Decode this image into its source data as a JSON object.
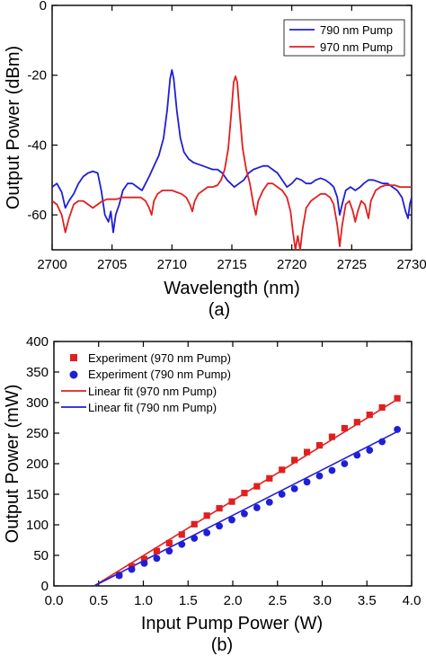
{
  "chart_data": [
    {
      "type": "line",
      "panel_label": "(a)",
      "xlabel": "Wavelength (nm)",
      "ylabel": "Output Power (dBm)",
      "xlim": [
        2700,
        2730
      ],
      "ylim": [
        -70,
        0
      ],
      "xticks": [
        "2700",
        "2705",
        "2710",
        "2715",
        "2720",
        "2725",
        "2730"
      ],
      "yticks": [
        "0",
        "-20",
        "-40",
        "-60"
      ],
      "legend_position": "top-right",
      "series": [
        {
          "name": "790 nm Pump",
          "color": "#1f1fd6",
          "points": [
            [
              2700.0,
              -52
            ],
            [
              2700.4,
              -51
            ],
            [
              2700.8,
              -53.5
            ],
            [
              2701.1,
              -58
            ],
            [
              2701.4,
              -56
            ],
            [
              2701.8,
              -54
            ],
            [
              2702.2,
              -51
            ],
            [
              2702.6,
              -49
            ],
            [
              2703.0,
              -48
            ],
            [
              2703.4,
              -47.5
            ],
            [
              2703.8,
              -48
            ],
            [
              2704.1,
              -53
            ],
            [
              2704.4,
              -60
            ],
            [
              2704.7,
              -62
            ],
            [
              2704.9,
              -59
            ],
            [
              2705.1,
              -65
            ],
            [
              2705.3,
              -60
            ],
            [
              2705.6,
              -57
            ],
            [
              2705.9,
              -53
            ],
            [
              2706.3,
              -51
            ],
            [
              2706.7,
              -51
            ],
            [
              2707.1,
              -52
            ],
            [
              2707.5,
              -53
            ],
            [
              2707.8,
              -51
            ],
            [
              2708.1,
              -49
            ],
            [
              2708.5,
              -46
            ],
            [
              2708.9,
              -43
            ],
            [
              2709.3,
              -38
            ],
            [
              2709.6,
              -30
            ],
            [
              2709.85,
              -21
            ],
            [
              2710.0,
              -18.5
            ],
            [
              2710.15,
              -21
            ],
            [
              2710.4,
              -30
            ],
            [
              2710.7,
              -38
            ],
            [
              2711.0,
              -42
            ],
            [
              2711.4,
              -44
            ],
            [
              2711.8,
              -45
            ],
            [
              2712.2,
              -45.5
            ],
            [
              2712.6,
              -46
            ],
            [
              2713.0,
              -46.5
            ],
            [
              2713.4,
              -47
            ],
            [
              2713.8,
              -47
            ],
            [
              2714.2,
              -48
            ],
            [
              2714.6,
              -50
            ],
            [
              2714.9,
              -51
            ],
            [
              2715.2,
              -52
            ],
            [
              2715.6,
              -51
            ],
            [
              2716.0,
              -50
            ],
            [
              2716.4,
              -48
            ],
            [
              2716.8,
              -47
            ],
            [
              2717.2,
              -46.5
            ],
            [
              2717.6,
              -46
            ],
            [
              2718.0,
              -46
            ],
            [
              2718.4,
              -47
            ],
            [
              2718.8,
              -48
            ],
            [
              2719.2,
              -50
            ],
            [
              2719.6,
              -52
            ],
            [
              2720.0,
              -51
            ],
            [
              2720.4,
              -49.5
            ],
            [
              2720.8,
              -50
            ],
            [
              2721.2,
              -51
            ],
            [
              2721.6,
              -51
            ],
            [
              2722.0,
              -50
            ],
            [
              2722.4,
              -49.5
            ],
            [
              2722.8,
              -50
            ],
            [
              2723.2,
              -51
            ],
            [
              2723.5,
              -52
            ],
            [
              2723.8,
              -55
            ],
            [
              2724.0,
              -60
            ],
            [
              2724.2,
              -57
            ],
            [
              2724.5,
              -53
            ],
            [
              2724.9,
              -52
            ],
            [
              2725.3,
              -53
            ],
            [
              2725.7,
              -52
            ],
            [
              2726.0,
              -51
            ],
            [
              2726.4,
              -50
            ],
            [
              2726.8,
              -50
            ],
            [
              2727.2,
              -50.5
            ],
            [
              2727.6,
              -51
            ],
            [
              2728.0,
              -51
            ],
            [
              2728.4,
              -52
            ],
            [
              2728.8,
              -53
            ],
            [
              2729.2,
              -55
            ],
            [
              2729.5,
              -59
            ],
            [
              2729.7,
              -61
            ],
            [
              2729.85,
              -57
            ],
            [
              2730.0,
              -55
            ]
          ]
        },
        {
          "name": "970 nm Pump",
          "color": "#e02020",
          "points": [
            [
              2700.0,
              -56
            ],
            [
              2700.4,
              -57
            ],
            [
              2700.8,
              -60
            ],
            [
              2701.1,
              -65
            ],
            [
              2701.4,
              -61
            ],
            [
              2701.8,
              -57
            ],
            [
              2702.2,
              -56
            ],
            [
              2702.6,
              -56
            ],
            [
              2703.0,
              -57
            ],
            [
              2703.4,
              -58
            ],
            [
              2703.8,
              -57
            ],
            [
              2704.2,
              -56
            ],
            [
              2704.6,
              -55.5
            ],
            [
              2705.0,
              -55.5
            ],
            [
              2705.4,
              -55.5
            ],
            [
              2705.8,
              -55
            ],
            [
              2706.2,
              -55
            ],
            [
              2706.6,
              -55
            ],
            [
              2707.0,
              -55
            ],
            [
              2707.4,
              -55
            ],
            [
              2707.8,
              -56
            ],
            [
              2708.1,
              -58
            ],
            [
              2708.3,
              -60
            ],
            [
              2708.5,
              -56
            ],
            [
              2708.8,
              -54
            ],
            [
              2709.2,
              -53
            ],
            [
              2709.6,
              -53
            ],
            [
              2710.0,
              -53
            ],
            [
              2710.4,
              -53.5
            ],
            [
              2710.8,
              -54
            ],
            [
              2711.2,
              -55
            ],
            [
              2711.5,
              -57
            ],
            [
              2711.7,
              -59
            ],
            [
              2711.9,
              -56
            ],
            [
              2712.2,
              -54
            ],
            [
              2712.6,
              -53
            ],
            [
              2713.0,
              -52
            ],
            [
              2713.4,
              -52
            ],
            [
              2713.8,
              -51.5
            ],
            [
              2714.1,
              -50
            ],
            [
              2714.4,
              -47
            ],
            [
              2714.7,
              -41
            ],
            [
              2714.95,
              -31
            ],
            [
              2715.15,
              -22
            ],
            [
              2715.3,
              -20.3
            ],
            [
              2715.45,
              -22
            ],
            [
              2715.65,
              -31
            ],
            [
              2715.9,
              -41
            ],
            [
              2716.2,
              -47
            ],
            [
              2716.5,
              -51
            ],
            [
              2716.8,
              -57
            ],
            [
              2717.0,
              -60
            ],
            [
              2717.2,
              -56
            ],
            [
              2717.6,
              -53
            ],
            [
              2718.0,
              -51
            ],
            [
              2718.4,
              -51
            ],
            [
              2718.8,
              -52
            ],
            [
              2719.2,
              -53
            ],
            [
              2719.6,
              -55
            ],
            [
              2719.9,
              -59
            ],
            [
              2720.1,
              -65
            ],
            [
              2720.3,
              -70
            ],
            [
              2720.5,
              -66
            ],
            [
              2720.7,
              -70
            ],
            [
              2720.9,
              -64
            ],
            [
              2721.2,
              -58
            ],
            [
              2721.6,
              -56
            ],
            [
              2722.0,
              -55
            ],
            [
              2722.4,
              -54
            ],
            [
              2722.8,
              -54
            ],
            [
              2723.2,
              -55
            ],
            [
              2723.5,
              -57
            ],
            [
              2723.8,
              -63
            ],
            [
              2724.0,
              -69
            ],
            [
              2724.2,
              -63
            ],
            [
              2724.5,
              -57
            ],
            [
              2724.8,
              -56
            ],
            [
              2725.1,
              -59
            ],
            [
              2725.3,
              -62
            ],
            [
              2725.5,
              -59
            ],
            [
              2725.8,
              -56
            ],
            [
              2726.1,
              -57
            ],
            [
              2726.4,
              -61
            ],
            [
              2726.6,
              -56
            ],
            [
              2727.0,
              -53
            ],
            [
              2727.4,
              -52
            ],
            [
              2727.8,
              -51.5
            ],
            [
              2728.2,
              -51.5
            ],
            [
              2728.6,
              -51.5
            ],
            [
              2729.0,
              -52
            ],
            [
              2729.4,
              -52
            ],
            [
              2729.8,
              -52
            ],
            [
              2730.0,
              -52
            ]
          ]
        }
      ]
    },
    {
      "type": "scatter",
      "panel_label": "(b)",
      "xlabel": "Input Pump Power (W)",
      "ylabel": "Output Power (mW)",
      "xlim": [
        0,
        4
      ],
      "ylim": [
        0,
        400
      ],
      "xticks": [
        "0.0",
        "0.5",
        "1.0",
        "1.5",
        "2.0",
        "2.5",
        "3.0",
        "3.5",
        "4.0"
      ],
      "yticks": [
        "0",
        "50",
        "100",
        "150",
        "200",
        "250",
        "300",
        "350",
        "400"
      ],
      "legend_position": "top-left",
      "series": [
        {
          "name": "Experiment (970 nm Pump)",
          "kind": "markers",
          "marker": "square",
          "color": "#e02020",
          "x": [
            0.73,
            0.87,
            1.01,
            1.15,
            1.29,
            1.43,
            1.57,
            1.71,
            1.85,
            1.99,
            2.13,
            2.27,
            2.41,
            2.55,
            2.69,
            2.83,
            2.97,
            3.11,
            3.25,
            3.39,
            3.53,
            3.67,
            3.84
          ],
          "y": [
            18,
            32,
            44,
            57,
            70,
            84,
            101,
            115,
            127,
            138,
            152,
            163,
            176,
            190,
            206,
            219,
            230,
            244,
            258,
            268,
            280,
            292,
            307
          ]
        },
        {
          "name": "Experiment (790 nm Pump)",
          "kind": "markers",
          "marker": "circle",
          "color": "#1f1fd6",
          "x": [
            0.73,
            0.87,
            1.01,
            1.15,
            1.29,
            1.43,
            1.57,
            1.71,
            1.85,
            1.99,
            2.13,
            2.27,
            2.41,
            2.55,
            2.69,
            2.83,
            2.97,
            3.11,
            3.25,
            3.39,
            3.53,
            3.67,
            3.84
          ],
          "y": [
            17,
            27,
            37,
            45,
            57,
            68,
            78,
            87,
            98,
            108,
            118,
            128,
            137,
            150,
            159,
            170,
            180,
            189,
            200,
            214,
            222,
            236,
            256
          ]
        },
        {
          "name": "Linear fit (970 nm Pump)",
          "kind": "line",
          "color": "#e02020",
          "x": [
            0.45,
            3.86
          ],
          "y": [
            0,
            307
          ]
        },
        {
          "name": "Linear fit (790 nm Pump)",
          "kind": "line",
          "color": "#1f1fd6",
          "x": [
            0.45,
            3.86
          ],
          "y": [
            0,
            254
          ]
        }
      ]
    }
  ]
}
